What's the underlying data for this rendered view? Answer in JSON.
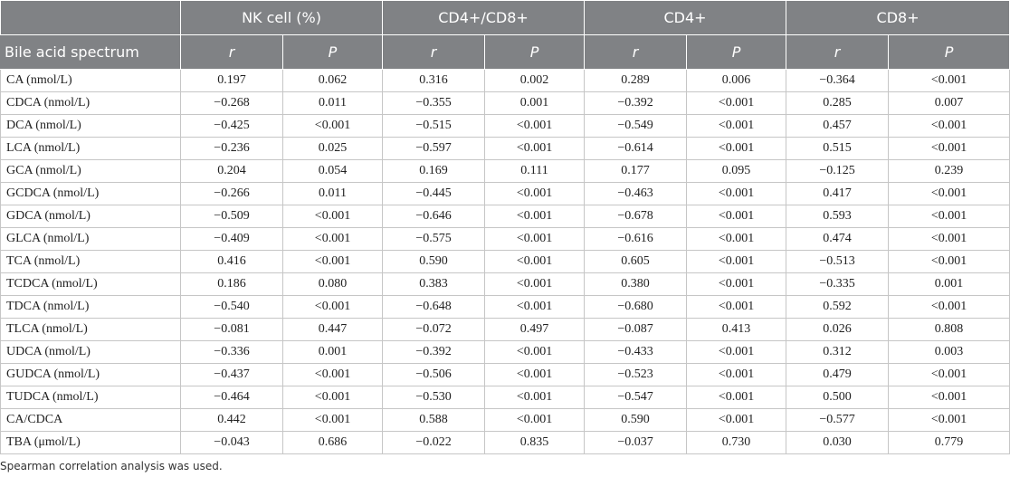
{
  "header": {
    "groups": [
      "NK cell (%)",
      "CD4+/CD8+",
      "CD4+",
      "CD8+"
    ],
    "first_col": "Bile acid spectrum",
    "sub_r": "r",
    "sub_p": "P"
  },
  "rows": [
    [
      "CA (nmol/L)",
      "0.197",
      "0.062",
      "0.316",
      "0.002",
      "0.289",
      "0.006",
      "−0.364",
      "<0.001"
    ],
    [
      "CDCA (nmol/L)",
      "−0.268",
      "0.011",
      "−0.355",
      "0.001",
      "−0.392",
      "<0.001",
      "0.285",
      "0.007"
    ],
    [
      "DCA (nmol/L)",
      "−0.425",
      "<0.001",
      "−0.515",
      "<0.001",
      "−0.549",
      "<0.001",
      "0.457",
      "<0.001"
    ],
    [
      "LCA (nmol/L)",
      "−0.236",
      "0.025",
      "−0.597",
      "<0.001",
      "−0.614",
      "<0.001",
      "0.515",
      "<0.001"
    ],
    [
      "GCA (nmol/L)",
      "0.204",
      "0.054",
      "0.169",
      "0.111",
      "0.177",
      "0.095",
      "−0.125",
      "0.239"
    ],
    [
      "GCDCA (nmol/L)",
      "−0.266",
      "0.011",
      "−0.445",
      "<0.001",
      "−0.463",
      "<0.001",
      "0.417",
      "<0.001"
    ],
    [
      "GDCA (nmol/L)",
      "−0.509",
      "<0.001",
      "−0.646",
      "<0.001",
      "−0.678",
      "<0.001",
      "0.593",
      "<0.001"
    ],
    [
      "GLCA (nmol/L)",
      "−0.409",
      "<0.001",
      "−0.575",
      "<0.001",
      "−0.616",
      "<0.001",
      "0.474",
      "<0.001"
    ],
    [
      "TCA (nmol/L)",
      "0.416",
      "<0.001",
      "0.590",
      "<0.001",
      "0.605",
      "<0.001",
      "−0.513",
      "<0.001"
    ],
    [
      "TCDCA (nmol/L)",
      "0.186",
      "0.080",
      "0.383",
      "<0.001",
      "0.380",
      "<0.001",
      "−0.335",
      "0.001"
    ],
    [
      "TDCA (nmol/L)",
      "−0.540",
      "<0.001",
      "−0.648",
      "<0.001",
      "−0.680",
      "<0.001",
      "0.592",
      "<0.001"
    ],
    [
      "TLCA (nmol/L)",
      "−0.081",
      "0.447",
      "−0.072",
      "0.497",
      "−0.087",
      "0.413",
      "0.026",
      "0.808"
    ],
    [
      "UDCA (nmol/L)",
      "−0.336",
      "0.001",
      "−0.392",
      "<0.001",
      "−0.433",
      "<0.001",
      "0.312",
      "0.003"
    ],
    [
      "GUDCA (nmol/L)",
      "−0.437",
      "<0.001",
      "−0.506",
      "<0.001",
      "−0.523",
      "<0.001",
      "0.479",
      "<0.001"
    ],
    [
      "TUDCA (nmol/L)",
      "−0.464",
      "<0.001",
      "−0.530",
      "<0.001",
      "−0.547",
      "<0.001",
      "0.500",
      "<0.001"
    ],
    [
      "CA/CDCA",
      "0.442",
      "<0.001",
      "0.588",
      "<0.001",
      "0.590",
      "<0.001",
      "−0.577",
      "<0.001"
    ],
    [
      "TBA (μmol/L)",
      "−0.043",
      "0.686",
      "−0.022",
      "0.835",
      "−0.037",
      "0.730",
      "0.030",
      "0.779"
    ]
  ],
  "footnote": "Spearman correlation analysis was used."
}
